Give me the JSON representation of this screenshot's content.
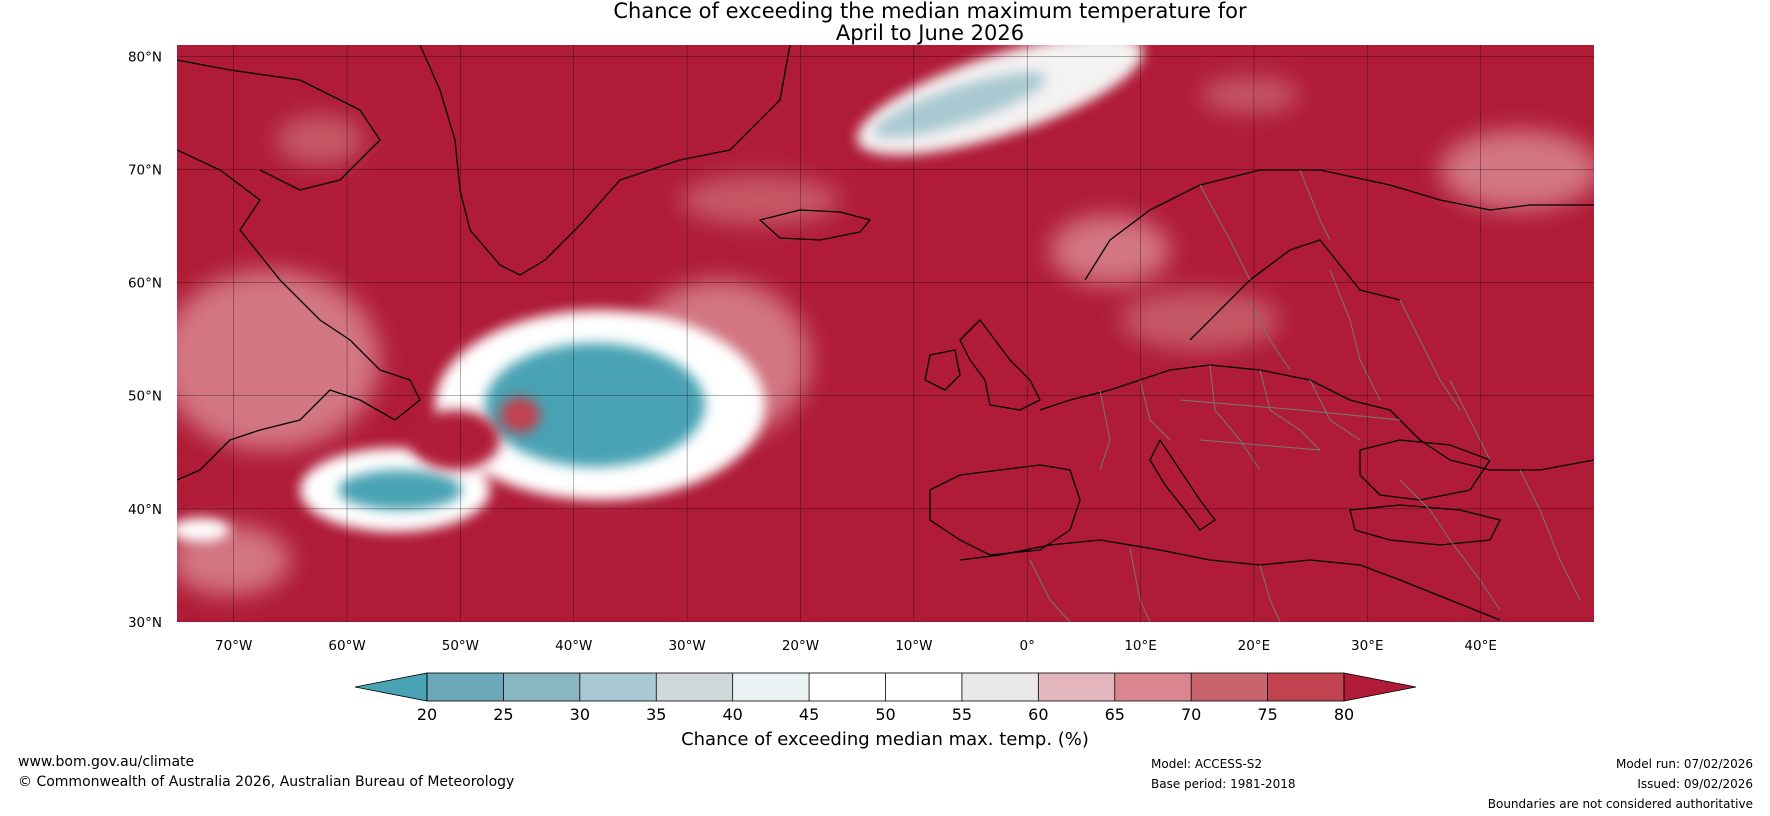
{
  "title": {
    "line1": "Chance of exceeding the median maximum temperature for",
    "line2": "April to June 2026"
  },
  "map": {
    "projection": "equirectangular",
    "extent": {
      "lon": [
        -75,
        50
      ],
      "lat": [
        30,
        81
      ]
    },
    "lat_ticks": [
      {
        "value": 80,
        "label": "80°N"
      },
      {
        "value": 70,
        "label": "70°N"
      },
      {
        "value": 60,
        "label": "60°N"
      },
      {
        "value": 50,
        "label": "50°N"
      },
      {
        "value": 40,
        "label": "40°N"
      },
      {
        "value": 30,
        "label": "30°N"
      }
    ],
    "lon_ticks": [
      {
        "value": -70,
        "label": "70°W"
      },
      {
        "value": -60,
        "label": "60°W"
      },
      {
        "value": -50,
        "label": "50°W"
      },
      {
        "value": -40,
        "label": "40°W"
      },
      {
        "value": -30,
        "label": "30°W"
      },
      {
        "value": -20,
        "label": "20°W"
      },
      {
        "value": -10,
        "label": "10°W"
      },
      {
        "value": 0,
        "label": "0°"
      },
      {
        "value": 10,
        "label": "10°E"
      },
      {
        "value": 20,
        "label": "20°E"
      },
      {
        "value": 30,
        "label": "30°E"
      },
      {
        "value": 40,
        "label": "40°E"
      }
    ],
    "background_color": "#b01c38",
    "regions": [
      {
        "name": "central-atlantic-cool-anomaly",
        "center": [
          -37,
          48.5
        ],
        "radius_deg": [
          9,
          5.5
        ],
        "chance": 22,
        "color": "#4aa3b4"
      },
      {
        "name": "west-atlantic-cool-anomaly",
        "center": [
          -55.5,
          41.5
        ],
        "radius_deg": [
          6,
          2.5
        ],
        "chance": 23,
        "color": "#4aa3b4"
      },
      {
        "name": "greenland-sea-cool-anomaly",
        "center": [
          -2,
          76
        ],
        "radius_deg": [
          9,
          2.5
        ],
        "chance": 40,
        "color": "#a9c8d1"
      }
    ]
  },
  "colorbar": {
    "label": "Chance of exceeding median max. temp. (%)",
    "ticks": [
      "20",
      "25",
      "30",
      "35",
      "40",
      "45",
      "50",
      "55",
      "60",
      "65",
      "70",
      "75",
      "80"
    ],
    "colors": [
      "#4aa3b4",
      "#6ca8b9",
      "#88b6c3",
      "#a9c8d1",
      "#cfd9dc",
      "#eaf2f3",
      "#ffffff",
      "#ffffff",
      "#eae8e9",
      "#e3b7bd",
      "#d98690",
      "#c9636e",
      "#c0434f",
      "#b01c38"
    ]
  },
  "footer": {
    "website": "www.bom.gov.au/climate",
    "copyright": "© Commonwealth of Australia 2026, Australian Bureau of Meteorology",
    "model": "Model: ACCESS-S2",
    "base_period": "Base period: 1981-2018",
    "model_run": "Model run: 07/02/2026",
    "issued": "Issued: 09/02/2026",
    "disclaimer": "Boundaries are not considered authoritative"
  }
}
